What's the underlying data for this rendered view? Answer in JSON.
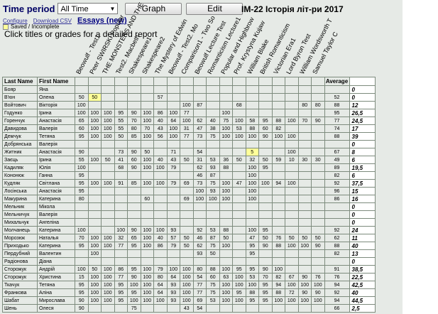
{
  "toolbar": {
    "time_period_label": "Time period",
    "time_period_value": "All Time",
    "graph_label": "Graph",
    "edit_label": "Edit"
  },
  "page_title": "IM-22 Історія літ-ри 2017",
  "links": {
    "configure": "Configure",
    "download": "Download CSV",
    "essays": "Essays (new)"
  },
  "legend": "Saved / Incomplete",
  "instruction": "Click titles or grades for a detailed report",
  "columns": {
    "last_name": "Last Name",
    "first_name": "First Name",
    "average": "Average",
    "assignments": [
      "Beowulf - Test1",
      "Peer SWIRSKI Popular",
      "THE MONSTERS AND THE",
      "Test2. Macbeth",
      "Shakespeare1",
      "Shakespeare2",
      "The Mystery of Edwin",
      "Beowulf - Test2. Mo",
      "Comparison1 - Two So",
      "Beowulf Lecture Test",
      "Romanticism Lecture1",
      "Popular and Highbrow",
      "Prof. Krystyna Kujaw",
      "William Blake",
      "British Romanticism",
      "Victorian Era1",
      "Lord Byron Test",
      "William Wordsworth T",
      "Samuel Taylor C"
    ]
  },
  "students": [
    {
      "last": "Бояр",
      "first": "Яна",
      "grades": [
        "",
        "",
        "",
        "",
        "",
        "",
        "",
        "",
        "",
        "",
        "",
        "",
        "",
        "",
        "",
        "",
        "",
        "",
        ""
      ],
      "avg": "",
      "mark": "0"
    },
    {
      "last": "В'юн",
      "first": "Олена",
      "grades": [
        "50",
        "50",
        "",
        "",
        "",
        "",
        "57",
        "",
        "",
        "",
        "",
        "",
        "",
        "",
        "",
        "",
        "",
        "",
        ""
      ],
      "avg": "52",
      "mark": "0"
    },
    {
      "last": "Войтович",
      "first": "Вікторія",
      "grades": [
        "100",
        "",
        "",
        "",
        "",
        "",
        "",
        "",
        "100",
        "87",
        "",
        "",
        "68",
        "",
        "",
        "",
        "",
        "80",
        "80"
      ],
      "avg": "88",
      "mark": "12"
    },
    {
      "last": "Годунко",
      "first": "Ірина",
      "grades": [
        "100",
        "100",
        "100",
        "95",
        "90",
        "100",
        "86",
        "100",
        "77",
        "",
        "",
        "100",
        "",
        "",
        "",
        "",
        "",
        "",
        ""
      ],
      "avg": "95",
      "mark": "26,5"
    },
    {
      "last": "Горенчук",
      "first": "Анастасія",
      "grades": [
        "65",
        "100",
        "100",
        "55",
        "70",
        "100",
        "40",
        "64",
        "100",
        "62",
        "40",
        "75",
        "100",
        "58",
        "95",
        "88",
        "100",
        "70",
        "90"
      ],
      "avg": "77",
      "mark": "24,5"
    },
    {
      "last": "Давидова",
      "first": "Валерія",
      "grades": [
        "60",
        "100",
        "100",
        "55",
        "80",
        "70",
        "43",
        "100",
        "31",
        "47",
        "38",
        "100",
        "53",
        "88",
        "60",
        "82",
        "",
        "",
        ""
      ],
      "avg": "74",
      "mark": "17"
    },
    {
      "last": "Демчук",
      "first": "Тетяна",
      "grades": [
        "95",
        "100",
        "100",
        "50",
        "85",
        "100",
        "56",
        "100",
        "77",
        "73",
        "75",
        "100",
        "100",
        "100",
        "90",
        "100",
        "100",
        "",
        ""
      ],
      "avg": "88",
      "mark": "39"
    },
    {
      "last": "Добрянська",
      "first": "Валерія",
      "grades": [
        "",
        "",
        "",
        "",
        "",
        "",
        "",
        "",
        "",
        "",
        "",
        "",
        "",
        "",
        "",
        "",
        "",
        "",
        ""
      ],
      "avg": "",
      "mark": "0"
    },
    {
      "last": "Житник",
      "first": "Анастасія",
      "grades": [
        "90",
        "",
        "",
        "73",
        "90",
        "50",
        "",
        "71",
        "",
        "54",
        "",
        "",
        "",
        "5",
        "",
        "",
        "100",
        "",
        ""
      ],
      "avg": "67",
      "mark": "8"
    },
    {
      "last": "Заєць",
      "first": "Ірина",
      "grades": [
        "55",
        "100",
        "50",
        "41",
        "60",
        "100",
        "40",
        "43",
        "50",
        "31",
        "53",
        "36",
        "50",
        "32",
        "50",
        "59",
        "10",
        "30",
        "30"
      ],
      "avg": "49",
      "mark": "6"
    },
    {
      "last": "Кадиляк",
      "first": "Юлія",
      "grades": [
        "100",
        "",
        "",
        "68",
        "90",
        "100",
        "100",
        "79",
        "",
        "62",
        "93",
        "88",
        "",
        "100",
        "95",
        "",
        "",
        "",
        ""
      ],
      "avg": "89",
      "mark": "19,5"
    },
    {
      "last": "Кононюк",
      "first": "Ганна",
      "grades": [
        "95",
        "",
        "",
        "",
        "",
        "",
        "",
        "",
        "",
        "46",
        "87",
        "",
        "",
        "100",
        "",
        "",
        "",
        "",
        ""
      ],
      "avg": "82",
      "mark": "6"
    },
    {
      "last": "Кудляк",
      "first": "Світлана",
      "grades": [
        "95",
        "100",
        "100",
        "91",
        "85",
        "100",
        "100",
        "79",
        "69",
        "73",
        "75",
        "100",
        "47",
        "100",
        "100",
        "94",
        "100",
        "",
        ""
      ],
      "avg": "92",
      "mark": "37,5"
    },
    {
      "last": "Лосінська",
      "first": "Анастасія",
      "grades": [
        "95",
        "",
        "",
        "",
        "",
        "",
        "",
        "",
        "",
        "100",
        "93",
        "100",
        "",
        "100",
        "",
        "",
        "",
        "",
        ""
      ],
      "avg": "96",
      "mark": "15"
    },
    {
      "last": "Макурина",
      "first": "Катерина",
      "grades": [
        "80",
        "",
        "",
        "",
        "",
        "60",
        "",
        "",
        "69",
        "100",
        "100",
        "100",
        "",
        "100",
        "",
        "",
        "",
        "",
        ""
      ],
      "avg": "86",
      "mark": "16"
    },
    {
      "last": "Мельник",
      "first": "Мікола",
      "grades": [
        "",
        "",
        "",
        "",
        "",
        "",
        "",
        "",
        "",
        "",
        "",
        "",
        "",
        "",
        "",
        "",
        "",
        "",
        ""
      ],
      "avg": "",
      "mark": "0"
    },
    {
      "last": "Мельничук",
      "first": "Валерія",
      "grades": [
        "",
        "",
        "",
        "",
        "",
        "",
        "",
        "",
        "",
        "",
        "",
        "",
        "",
        "",
        "",
        "",
        "",
        "",
        ""
      ],
      "avg": "",
      "mark": "0"
    },
    {
      "last": "Михальчук",
      "first": "Ангеліна",
      "grades": [
        "",
        "",
        "",
        "",
        "",
        "",
        "",
        "",
        "",
        "",
        "",
        "",
        "",
        "",
        "",
        "",
        "",
        "",
        ""
      ],
      "avg": "",
      "mark": "0"
    },
    {
      "last": "Молчанець",
      "first": "Катерина",
      "grades": [
        "100",
        "",
        "",
        "100",
        "90",
        "100",
        "100",
        "93",
        "",
        "92",
        "53",
        "88",
        "",
        "100",
        "95",
        "",
        "",
        "",
        ""
      ],
      "avg": "92",
      "mark": "24"
    },
    {
      "last": "Морозюк",
      "first": "Наталья",
      "grades": [
        "70",
        "100",
        "100",
        "32",
        "65",
        "100",
        "40",
        "57",
        "50",
        "46",
        "87",
        "50",
        "",
        "47",
        "50",
        "76",
        "50",
        "50",
        "50"
      ],
      "avg": "62",
      "mark": "11"
    },
    {
      "last": "Приходько",
      "first": "Катерина",
      "grades": [
        "95",
        "100",
        "100",
        "77",
        "95",
        "100",
        "86",
        "79",
        "50",
        "62",
        "75",
        "100",
        "",
        "95",
        "90",
        "88",
        "100",
        "100",
        "90"
      ],
      "avg": "88",
      "mark": "40"
    },
    {
      "last": "Пердубний",
      "first": "Валентин",
      "grades": [
        "",
        "100",
        "",
        "",
        "",
        "",
        "",
        "",
        "",
        "93",
        "50",
        "",
        "",
        "95",
        "",
        "",
        "",
        "",
        ""
      ],
      "avg": "82",
      "mark": "13"
    },
    {
      "last": "Радіонова",
      "first": "Діана",
      "grades": [
        "",
        "",
        "",
        "",
        "",
        "",
        "",
        "",
        "",
        "",
        "",
        "",
        "",
        "",
        "",
        "",
        "",
        "",
        ""
      ],
      "avg": "",
      "mark": "0"
    },
    {
      "last": "Сторожук",
      "first": "Андрій",
      "grades": [
        "100",
        "50",
        "100",
        "86",
        "95",
        "100",
        "79",
        "100",
        "100",
        "80",
        "88",
        "100",
        "95",
        "95",
        "90",
        "100",
        "",
        "",
        ""
      ],
      "avg": "91",
      "mark": "38,5"
    },
    {
      "last": "Сторожук",
      "first": "Христина",
      "grades": [
        "15",
        "100",
        "100",
        "77",
        "90",
        "100",
        "80",
        "64",
        "100",
        "54",
        "60",
        "63",
        "100",
        "53",
        "70",
        "82",
        "67",
        "90",
        "76"
      ],
      "avg": "76",
      "mark": "22,5"
    },
    {
      "last": "Ткачук",
      "first": "Тетяна",
      "grades": [
        "95",
        "100",
        "100",
        "95",
        "100",
        "100",
        "64",
        "93",
        "100",
        "77",
        "75",
        "100",
        "100",
        "100",
        "95",
        "94",
        "100",
        "100",
        "100"
      ],
      "avg": "94",
      "mark": "42,5"
    },
    {
      "last": "Франкова",
      "first": "Аліна",
      "grades": [
        "95",
        "100",
        "100",
        "95",
        "95",
        "100",
        "64",
        "93",
        "100",
        "77",
        "75",
        "100",
        "95",
        "88",
        "95",
        "88",
        "72",
        "90",
        "90"
      ],
      "avg": "92",
      "mark": "40"
    },
    {
      "last": "Шабат",
      "first": "Мирослава",
      "grades": [
        "90",
        "100",
        "100",
        "95",
        "100",
        "100",
        "100",
        "93",
        "100",
        "69",
        "53",
        "100",
        "100",
        "95",
        "95",
        "100",
        "100",
        "100",
        "100"
      ],
      "avg": "94",
      "mark": "44,5"
    },
    {
      "last": "Шень",
      "first": "Олеся",
      "grades": [
        "90",
        "",
        "",
        "",
        "75",
        "",
        "",
        "",
        "43",
        "54",
        "",
        "",
        "",
        "",
        "",
        "",
        "",
        "",
        ""
      ],
      "avg": "66",
      "mark": "2,5"
    }
  ],
  "highlighted_cells": [
    [
      1,
      1
    ],
    [
      8,
      13
    ]
  ],
  "colors": {
    "background": "#e6eae6",
    "highlight": "#ffff99",
    "title_blue": "#000064"
  }
}
